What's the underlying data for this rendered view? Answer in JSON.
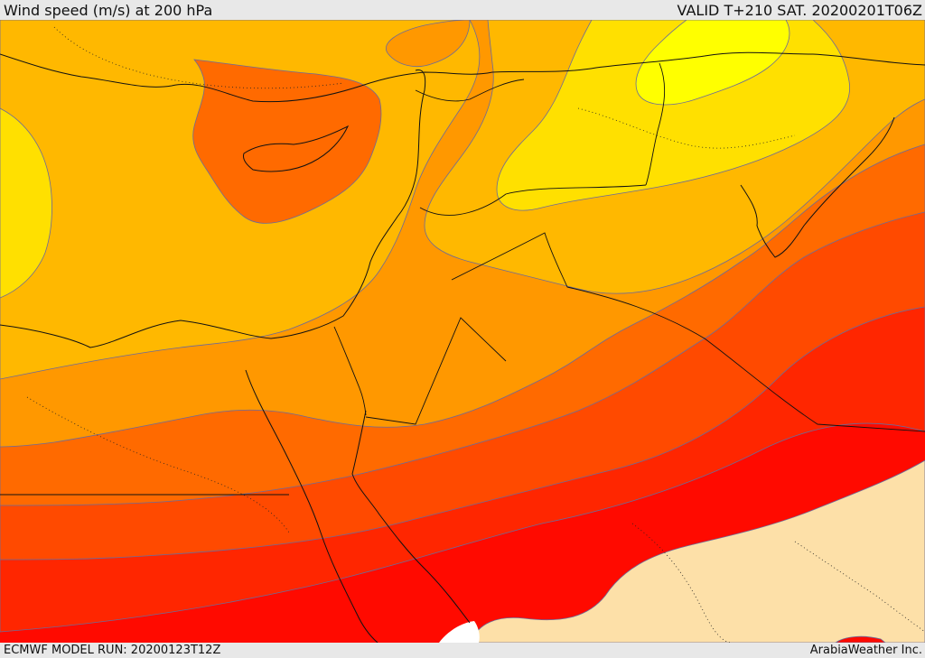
{
  "header": {
    "title": "Wind speed (m/s) at 200 hPa",
    "valid": "VALID T+210 SAT. 20200201T06Z"
  },
  "footer": {
    "model_run": "ECMWF MODEL RUN: 20200123T12Z",
    "credit": "ArabiaWeather Inc."
  },
  "map": {
    "colors": {
      "pale": "#fde0a8",
      "red": "#ff0a00",
      "red_orange": "#ff2600",
      "orange_red": "#ff4a00",
      "dark_orange": "#ff6a00",
      "orange": "#ff9800",
      "amber": "#ffb800",
      "gold": "#ffe000",
      "yellow": "#ffff00",
      "sea_white": "#ffffff"
    }
  }
}
